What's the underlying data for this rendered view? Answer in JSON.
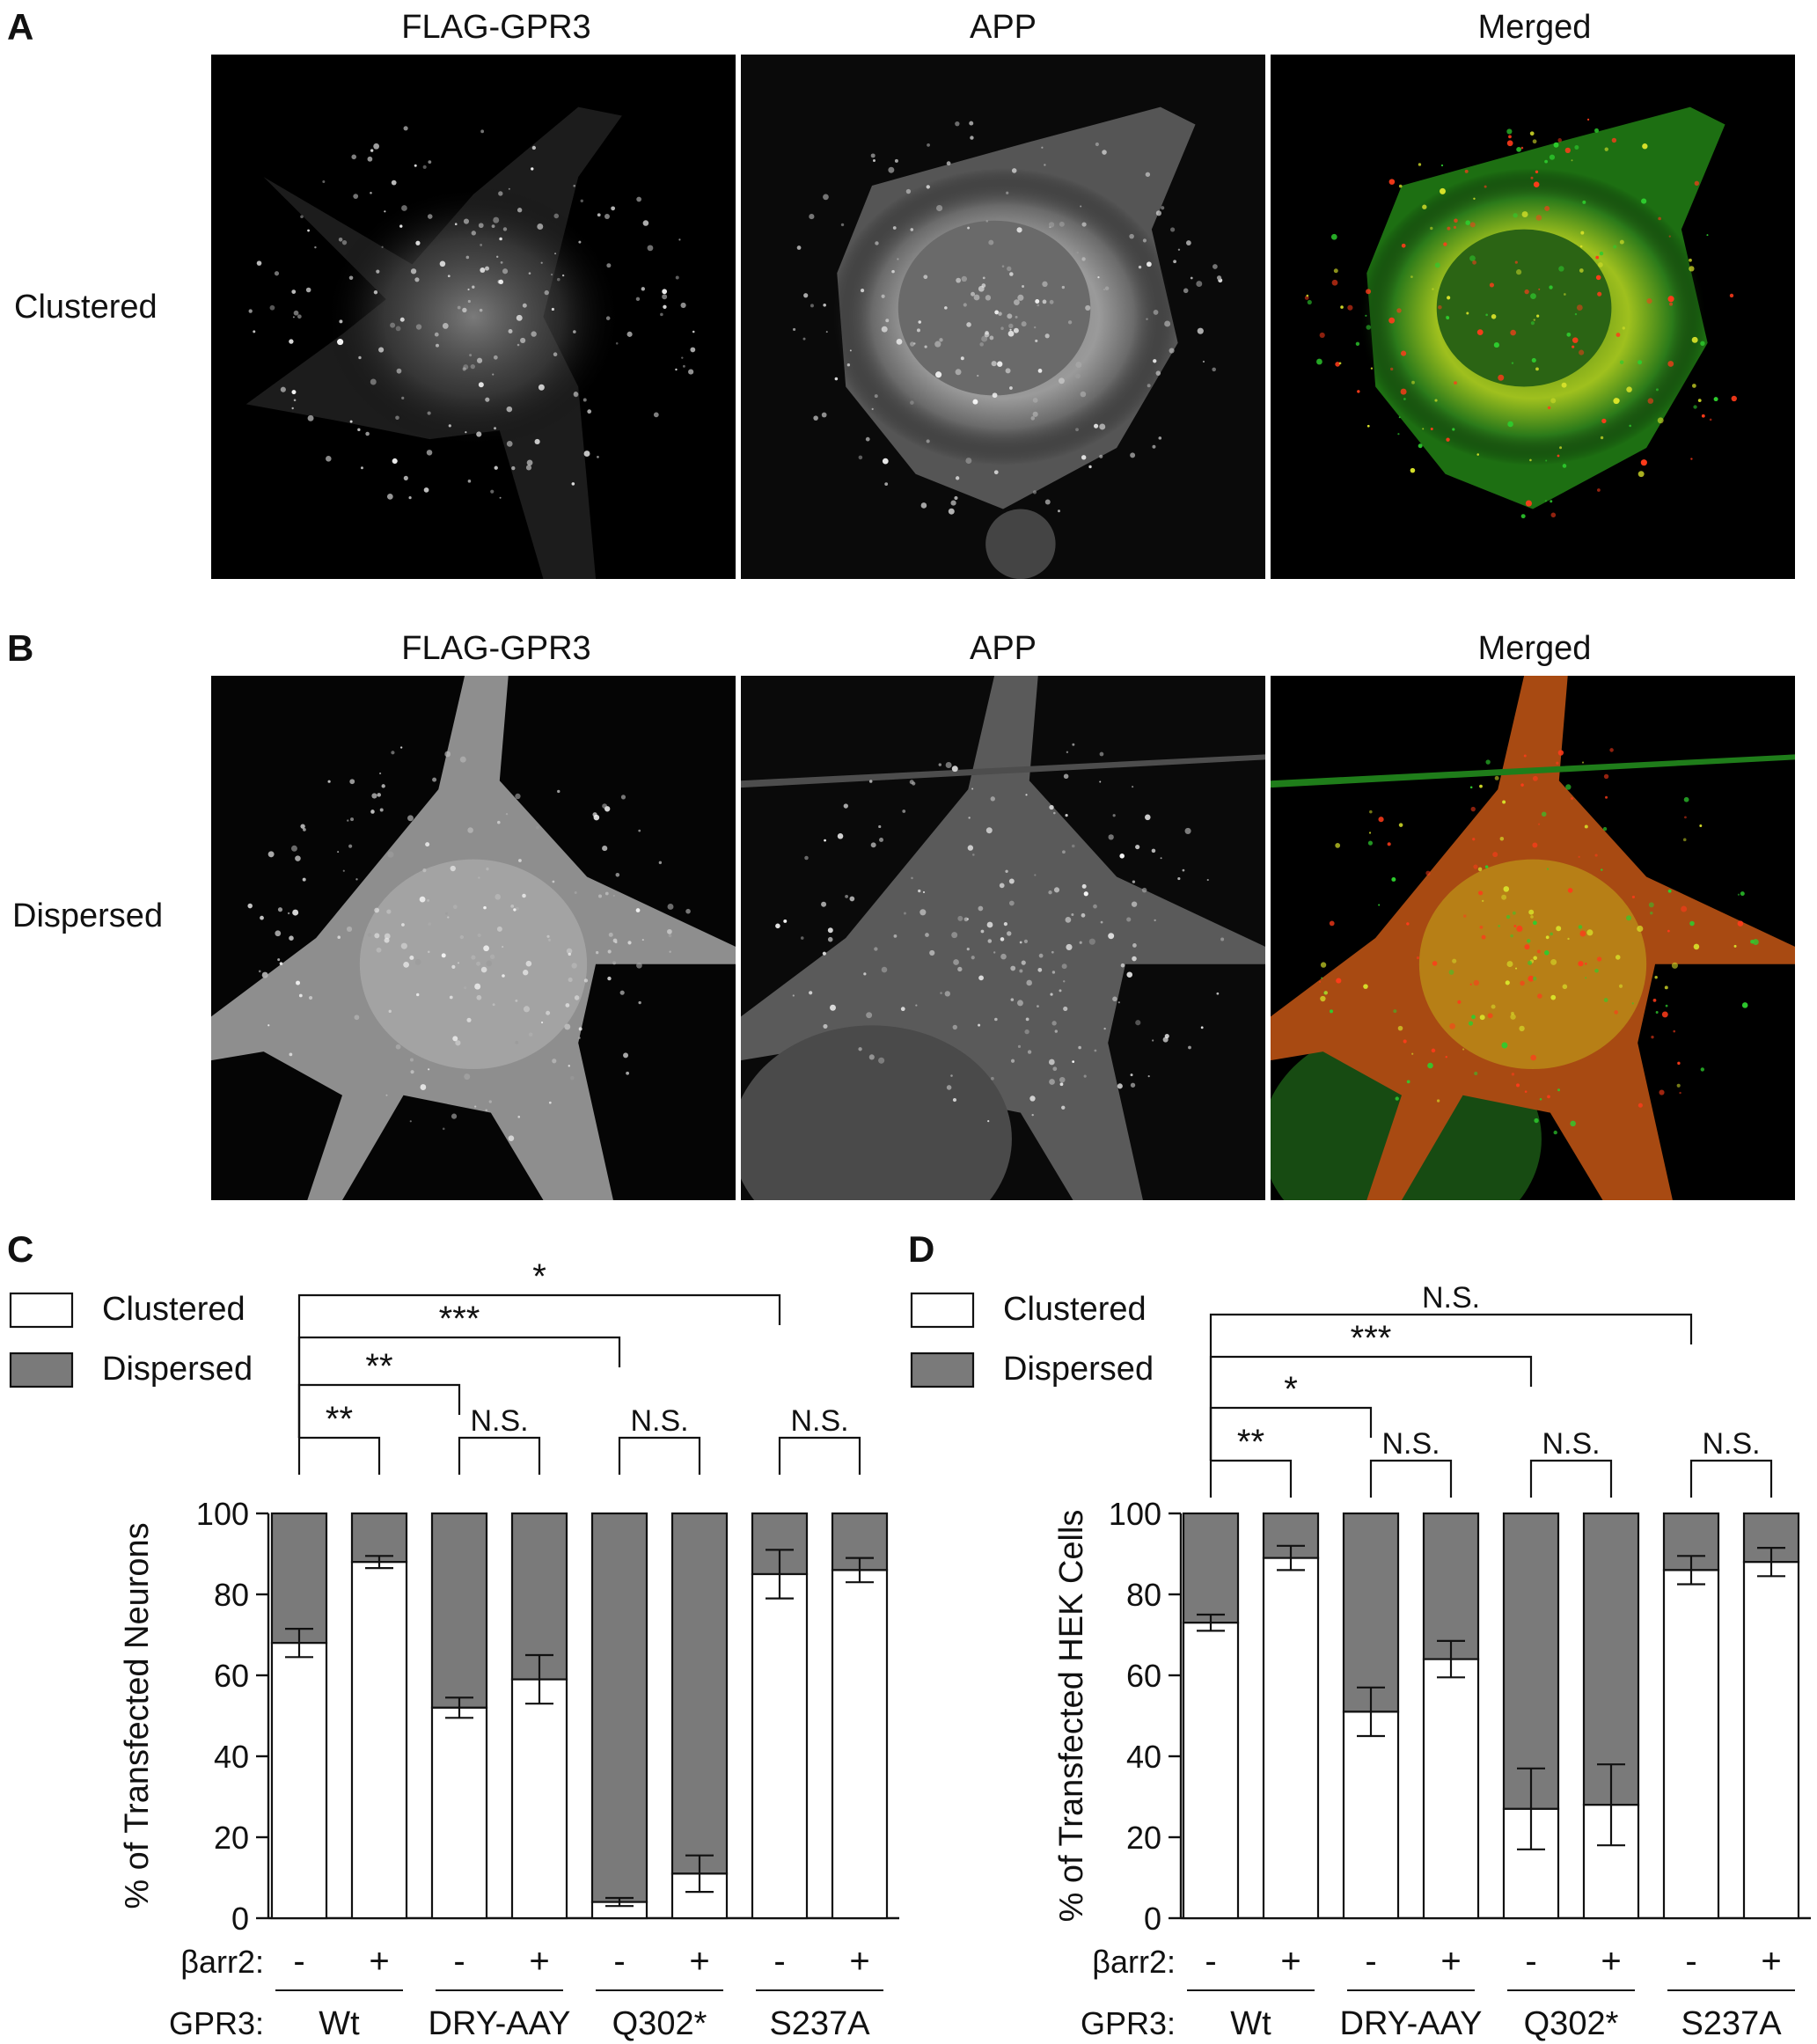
{
  "panels": {
    "A": {
      "letter": "A",
      "row_label": "Clustered",
      "columns": [
        "FLAG-GPR3",
        "APP",
        "Merged"
      ]
    },
    "B": {
      "letter": "B",
      "row_label": "Dispersed",
      "columns": [
        "FLAG-GPR3",
        "APP",
        "Merged"
      ]
    }
  },
  "colors": {
    "clustered": "#ffffff",
    "dispersed": "#7a7a7a",
    "red_channel": "#ff3b1a",
    "green_channel": "#2ecc2e"
  },
  "chart_data": [
    {
      "panel": "C",
      "type": "bar",
      "stacked": true,
      "ylabel": "% of Transfected Neurons",
      "ylim": [
        0,
        100
      ],
      "yticks": [
        0,
        20,
        40,
        60,
        80,
        100
      ],
      "legend": [
        "Clustered",
        "Dispersed"
      ],
      "legend_placement": "top-left",
      "barr2_label": "βarr2:",
      "gpr3_label": "GPR3:",
      "barr2": [
        "-",
        "+",
        "-",
        "+",
        "-",
        "+",
        "-",
        "+"
      ],
      "groups": [
        "Wt",
        "DRY-AAY",
        "Q302*",
        "S237A"
      ],
      "series": [
        {
          "name": "Clustered",
          "values": [
            68,
            88,
            52,
            59,
            4,
            11,
            85,
            86
          ],
          "errors": [
            3.5,
            1.5,
            2.5,
            6,
            1,
            4.5,
            6,
            3
          ]
        },
        {
          "name": "Dispersed",
          "values": [
            32,
            12,
            48,
            41,
            96,
            89,
            15,
            14
          ]
        }
      ],
      "pair_labels": [
        "**",
        "N.S.",
        "N.S.",
        "N.S."
      ],
      "comparisons": [
        {
          "label": "**",
          "from": 0,
          "to": 2
        },
        {
          "label": "***",
          "from": 0,
          "to": 4
        },
        {
          "label": "*",
          "from": 0,
          "to": 6
        }
      ]
    },
    {
      "panel": "D",
      "type": "bar",
      "stacked": true,
      "ylabel": "% of Transfected HEK Cells",
      "ylim": [
        0,
        100
      ],
      "yticks": [
        0,
        20,
        40,
        60,
        80,
        100
      ],
      "legend": [
        "Clustered",
        "Dispersed"
      ],
      "legend_placement": "top-left",
      "barr2_label": "βarr2:",
      "gpr3_label": "GPR3:",
      "barr2": [
        "-",
        "+",
        "-",
        "+",
        "-",
        "+",
        "-",
        "+"
      ],
      "groups": [
        "Wt",
        "DRY-AAY",
        "Q302*",
        "S237A"
      ],
      "series": [
        {
          "name": "Clustered",
          "values": [
            73,
            89,
            51,
            64,
            27,
            28,
            86,
            88
          ],
          "errors": [
            2,
            3,
            6,
            4.5,
            10,
            10,
            3.5,
            3.5
          ]
        },
        {
          "name": "Dispersed",
          "values": [
            27,
            11,
            49,
            36,
            73,
            72,
            14,
            12
          ]
        }
      ],
      "pair_labels": [
        "**",
        "N.S.",
        "N.S.",
        "N.S."
      ],
      "comparisons": [
        {
          "label": "*",
          "from": 0,
          "to": 2
        },
        {
          "label": "***",
          "from": 0,
          "to": 4
        },
        {
          "label": "N.S.",
          "from": 0,
          "to": 6
        }
      ]
    }
  ]
}
